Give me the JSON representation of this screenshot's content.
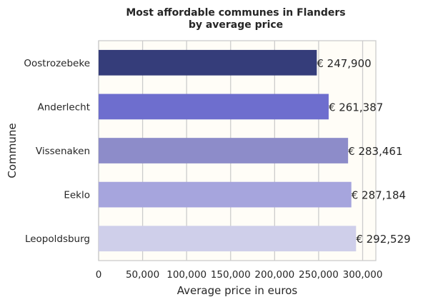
{
  "chart_data": {
    "type": "bar",
    "orientation": "horizontal",
    "title": "Most affordable communes in Flanders",
    "subtitle": "by average price",
    "xlabel": "Average price in euros",
    "ylabel": "Commune",
    "xlim": [
      0,
      315000
    ],
    "xticks": [
      0,
      50000,
      100000,
      150000,
      200000,
      250000,
      300000
    ],
    "xtick_labels": [
      "0",
      "50,000",
      "100,000",
      "150,000",
      "200,000",
      "250,000",
      "300,000"
    ],
    "grid": "vertical",
    "categories": [
      "Oostrozebeke",
      "Anderlecht",
      "Vissenaken",
      "Eeklo",
      "Leopoldsburg"
    ],
    "values": [
      247900,
      261387,
      283461,
      287184,
      292529
    ],
    "data_labels": [
      "€ 247,900",
      "€ 261,387",
      "€ 283,461",
      "€ 287,184",
      "€ 292,529"
    ],
    "colors": [
      "#353d7a",
      "#6e6ece",
      "#8d8cc9",
      "#a6a5dd",
      "#cfcfea"
    ]
  }
}
